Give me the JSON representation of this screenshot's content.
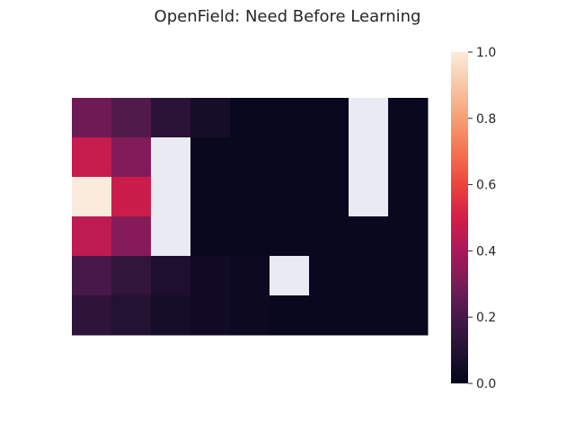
{
  "chart_data": {
    "type": "heatmap",
    "title": "OpenField: Need Before Learning",
    "rows": 6,
    "cols": 9,
    "values": [
      [
        0.28,
        0.22,
        0.12,
        0.06,
        0.02,
        0.02,
        0.02,
        null,
        0.02
      ],
      [
        0.47,
        0.32,
        null,
        0.02,
        0.02,
        0.02,
        0.02,
        null,
        0.02
      ],
      [
        1.0,
        0.48,
        null,
        0.02,
        0.02,
        0.02,
        0.02,
        null,
        0.02
      ],
      [
        0.45,
        0.33,
        null,
        0.02,
        0.02,
        0.02,
        0.02,
        0.02,
        0.02
      ],
      [
        0.2,
        0.14,
        0.08,
        0.04,
        0.03,
        null,
        0.02,
        0.02,
        0.02
      ],
      [
        0.13,
        0.1,
        0.06,
        0.04,
        0.03,
        0.02,
        0.02,
        0.02,
        0.02
      ]
    ],
    "colorbar": {
      "min": 0.0,
      "max": 1.0,
      "ticks": [
        "0.0",
        "0.2",
        "0.4",
        "0.6",
        "0.8",
        "1.0"
      ]
    },
    "colormap": "rocket",
    "masked_color": "#eaeaf2",
    "xlabel": "",
    "ylabel": "",
    "grid": false
  }
}
